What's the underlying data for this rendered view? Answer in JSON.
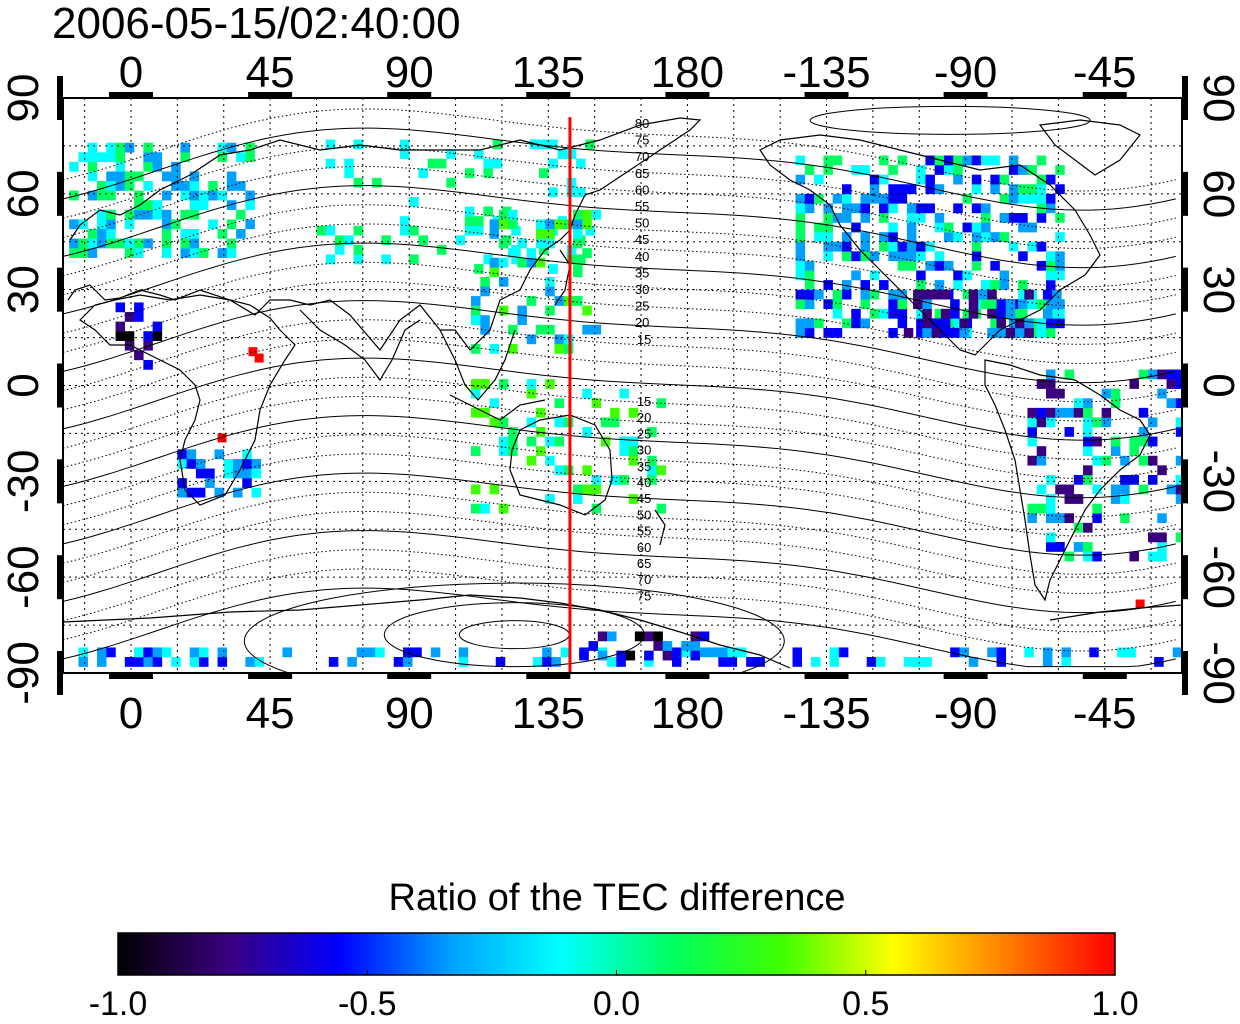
{
  "title": "2006-05-15/02:40:00",
  "map": {
    "lon_range": [
      -22,
      340
    ],
    "lat_range": [
      -90,
      90
    ],
    "bottom_x_ticks": [
      "0",
      "45",
      "90",
      "135",
      "180",
      "-135",
      "-90",
      "-45"
    ],
    "top_x_ticks": [
      "0",
      "45",
      "90",
      "135",
      "180",
      "-135",
      "-90",
      "-45"
    ],
    "left_y_ticks": [
      "-90",
      "-60",
      "-30",
      "0",
      "30",
      "60",
      "90"
    ],
    "right_y_ticks": [
      "-90",
      "-60",
      "-30",
      "0",
      "30",
      "60",
      "90"
    ],
    "tick_lon_positions": [
      0,
      45,
      90,
      135,
      180,
      225,
      270,
      315
    ],
    "tick_lat_positions": [
      -90,
      -60,
      -30,
      0,
      30,
      60,
      90
    ],
    "red_meridian_lon": 142,
    "contour_labels_north": [
      "80",
      "75",
      "70",
      "65",
      "60",
      "55",
      "50",
      "45",
      "40",
      "35",
      "30",
      "25",
      "20",
      "15"
    ],
    "contour_labels_south": [
      "15",
      "20",
      "25",
      "30",
      "35",
      "40",
      "45",
      "50",
      "55",
      "60",
      "65",
      "70",
      "75"
    ],
    "grid": true
  },
  "colorbar": {
    "title": "Ratio of the TEC difference",
    "tick_labels": [
      "-1.0",
      "-0.5",
      "0.0",
      "0.5",
      "1.0"
    ],
    "range": [
      -1.0,
      1.0
    ],
    "colors": [
      "#000000",
      "#3a0080",
      "#0000ff",
      "#00a0ff",
      "#00ffff",
      "#00ff60",
      "#40ff00",
      "#ffff00",
      "#ff8000",
      "#ff0000"
    ]
  }
}
